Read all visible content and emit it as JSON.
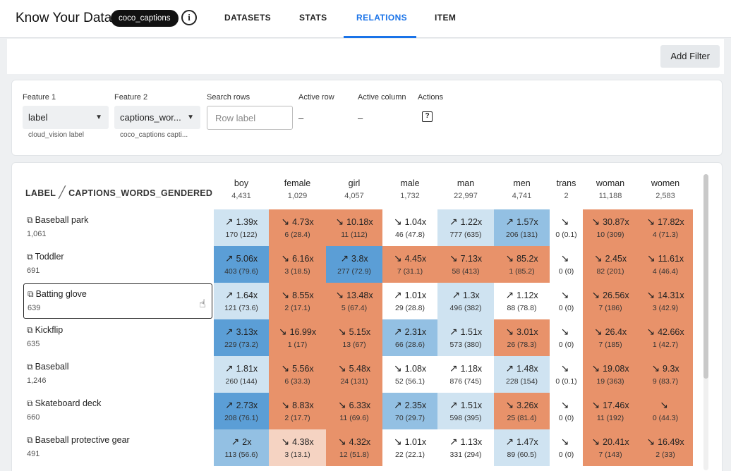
{
  "header": {
    "app_title": "Know Your Data",
    "dataset": "coco_captions",
    "info_icon": "info-icon",
    "tabs": [
      {
        "label": "DATASETS",
        "active": false
      },
      {
        "label": "STATS",
        "active": false
      },
      {
        "label": "RELATIONS",
        "active": true
      },
      {
        "label": "ITEM",
        "active": false
      }
    ],
    "accent_color": "#1a73e8"
  },
  "filterbar": {
    "add_filter_label": "Add Filter"
  },
  "controls": {
    "feature1": {
      "label": "Feature 1",
      "value": "label",
      "sub": "cloud_vision label"
    },
    "feature2": {
      "label": "Feature 2",
      "value": "captions_wor...",
      "sub": "coco_captions capti..."
    },
    "search": {
      "label": "Search rows",
      "placeholder": "Row label"
    },
    "active_row": {
      "label": "Active row",
      "value": "–"
    },
    "active_column": {
      "label": "Active column",
      "value": "–"
    },
    "actions": {
      "label": "Actions",
      "icon": "help-icon"
    }
  },
  "table": {
    "row_feature": "LABEL",
    "col_feature": "CAPTIONS_WORDS_GENDERED",
    "colors": {
      "high": "#5b9ed6",
      "mid": "#93c0e3",
      "low": "#cfe3f1",
      "neutral": "#ffffff",
      "under": "#e8926a",
      "under_light": "#f5d3c2"
    },
    "columns": [
      {
        "name": "boy",
        "count": "4,431"
      },
      {
        "name": "female",
        "count": "1,029"
      },
      {
        "name": "girl",
        "count": "4,057"
      },
      {
        "name": "male",
        "count": "1,732"
      },
      {
        "name": "man",
        "count": "22,997"
      },
      {
        "name": "men",
        "count": "4,741"
      },
      {
        "name": "trans",
        "count": "2"
      },
      {
        "name": "woman",
        "count": "11,188"
      },
      {
        "name": "women",
        "count": "2,583"
      }
    ],
    "rows": [
      {
        "label": "Baseball park",
        "count": "1,061",
        "cells": [
          {
            "dir": "up",
            "ratio": "1.39x",
            "detail": "170 (122)",
            "shade": "low"
          },
          {
            "dir": "down",
            "ratio": "4.73x",
            "detail": "6 (28.4)",
            "shade": "under"
          },
          {
            "dir": "down",
            "ratio": "10.18x",
            "detail": "11 (112)",
            "shade": "under"
          },
          {
            "dir": "down",
            "ratio": "1.04x",
            "detail": "46 (47.8)",
            "shade": "neutral"
          },
          {
            "dir": "up",
            "ratio": "1.22x",
            "detail": "777 (635)",
            "shade": "low"
          },
          {
            "dir": "up",
            "ratio": "1.57x",
            "detail": "206 (131)",
            "shade": "mid"
          },
          {
            "dir": "down",
            "ratio": "",
            "detail": "0 (0.1)",
            "shade": "neutral"
          },
          {
            "dir": "down",
            "ratio": "30.87x",
            "detail": "10 (309)",
            "shade": "under"
          },
          {
            "dir": "down",
            "ratio": "17.82x",
            "detail": "4 (71.3)",
            "shade": "under"
          }
        ]
      },
      {
        "label": "Toddler",
        "count": "691",
        "cells": [
          {
            "dir": "up",
            "ratio": "5.06x",
            "detail": "403 (79.6)",
            "shade": "high"
          },
          {
            "dir": "down",
            "ratio": "6.16x",
            "detail": "3 (18.5)",
            "shade": "under"
          },
          {
            "dir": "up",
            "ratio": "3.8x",
            "detail": "277 (72.9)",
            "shade": "high"
          },
          {
            "dir": "down",
            "ratio": "4.45x",
            "detail": "7 (31.1)",
            "shade": "under"
          },
          {
            "dir": "down",
            "ratio": "7.13x",
            "detail": "58 (413)",
            "shade": "under"
          },
          {
            "dir": "down",
            "ratio": "85.2x",
            "detail": "1 (85.2)",
            "shade": "under"
          },
          {
            "dir": "down",
            "ratio": "",
            "detail": "0 (0)",
            "shade": "neutral"
          },
          {
            "dir": "down",
            "ratio": "2.45x",
            "detail": "82 (201)",
            "shade": "under"
          },
          {
            "dir": "down",
            "ratio": "11.61x",
            "detail": "4 (46.4)",
            "shade": "under"
          }
        ]
      },
      {
        "label": "Batting glove",
        "count": "639",
        "cells": [
          {
            "dir": "up",
            "ratio": "1.64x",
            "detail": "121 (73.6)",
            "shade": "low"
          },
          {
            "dir": "down",
            "ratio": "8.55x",
            "detail": "2 (17.1)",
            "shade": "under"
          },
          {
            "dir": "down",
            "ratio": "13.48x",
            "detail": "5 (67.4)",
            "shade": "under"
          },
          {
            "dir": "up",
            "ratio": "1.01x",
            "detail": "29 (28.8)",
            "shade": "neutral"
          },
          {
            "dir": "up",
            "ratio": "1.3x",
            "detail": "496 (382)",
            "shade": "low"
          },
          {
            "dir": "up",
            "ratio": "1.12x",
            "detail": "88 (78.8)",
            "shade": "neutral"
          },
          {
            "dir": "down",
            "ratio": "",
            "detail": "0 (0)",
            "shade": "neutral"
          },
          {
            "dir": "down",
            "ratio": "26.56x",
            "detail": "7 (186)",
            "shade": "under"
          },
          {
            "dir": "down",
            "ratio": "14.31x",
            "detail": "3 (42.9)",
            "shade": "under"
          }
        ]
      },
      {
        "label": "Kickflip",
        "count": "635",
        "cells": [
          {
            "dir": "up",
            "ratio": "3.13x",
            "detail": "229 (73.2)",
            "shade": "high"
          },
          {
            "dir": "down",
            "ratio": "16.99x",
            "detail": "1 (17)",
            "shade": "under"
          },
          {
            "dir": "down",
            "ratio": "5.15x",
            "detail": "13 (67)",
            "shade": "under"
          },
          {
            "dir": "up",
            "ratio": "2.31x",
            "detail": "66 (28.6)",
            "shade": "mid"
          },
          {
            "dir": "up",
            "ratio": "1.51x",
            "detail": "573 (380)",
            "shade": "low"
          },
          {
            "dir": "down",
            "ratio": "3.01x",
            "detail": "26 (78.3)",
            "shade": "under"
          },
          {
            "dir": "down",
            "ratio": "",
            "detail": "0 (0)",
            "shade": "neutral"
          },
          {
            "dir": "down",
            "ratio": "26.4x",
            "detail": "7 (185)",
            "shade": "under"
          },
          {
            "dir": "down",
            "ratio": "42.66x",
            "detail": "1 (42.7)",
            "shade": "under"
          }
        ]
      },
      {
        "label": "Baseball",
        "count": "1,246",
        "cells": [
          {
            "dir": "up",
            "ratio": "1.81x",
            "detail": "260 (144)",
            "shade": "low"
          },
          {
            "dir": "down",
            "ratio": "5.56x",
            "detail": "6 (33.3)",
            "shade": "under"
          },
          {
            "dir": "down",
            "ratio": "5.48x",
            "detail": "24 (131)",
            "shade": "under"
          },
          {
            "dir": "down",
            "ratio": "1.08x",
            "detail": "52 (56.1)",
            "shade": "neutral"
          },
          {
            "dir": "up",
            "ratio": "1.18x",
            "detail": "876 (745)",
            "shade": "neutral"
          },
          {
            "dir": "up",
            "ratio": "1.48x",
            "detail": "228 (154)",
            "shade": "low"
          },
          {
            "dir": "down",
            "ratio": "",
            "detail": "0 (0.1)",
            "shade": "neutral"
          },
          {
            "dir": "down",
            "ratio": "19.08x",
            "detail": "19 (363)",
            "shade": "under"
          },
          {
            "dir": "down",
            "ratio": "9.3x",
            "detail": "9 (83.7)",
            "shade": "under"
          }
        ]
      },
      {
        "label": "Skateboard deck",
        "count": "660",
        "cells": [
          {
            "dir": "up",
            "ratio": "2.73x",
            "detail": "208 (76.1)",
            "shade": "high"
          },
          {
            "dir": "down",
            "ratio": "8.83x",
            "detail": "2 (17.7)",
            "shade": "under"
          },
          {
            "dir": "down",
            "ratio": "6.33x",
            "detail": "11 (69.6)",
            "shade": "under"
          },
          {
            "dir": "up",
            "ratio": "2.35x",
            "detail": "70 (29.7)",
            "shade": "mid"
          },
          {
            "dir": "up",
            "ratio": "1.51x",
            "detail": "598 (395)",
            "shade": "low"
          },
          {
            "dir": "down",
            "ratio": "3.26x",
            "detail": "25 (81.4)",
            "shade": "under"
          },
          {
            "dir": "down",
            "ratio": "",
            "detail": "0 (0)",
            "shade": "neutral"
          },
          {
            "dir": "down",
            "ratio": "17.46x",
            "detail": "11 (192)",
            "shade": "under"
          },
          {
            "dir": "down",
            "ratio": "",
            "detail": "0 (44.3)",
            "shade": "under"
          }
        ]
      },
      {
        "label": "Baseball protective gear",
        "count": "491",
        "cells": [
          {
            "dir": "up",
            "ratio": "2x",
            "detail": "113 (56.6)",
            "shade": "mid"
          },
          {
            "dir": "down",
            "ratio": "4.38x",
            "detail": "3 (13.1)",
            "shade": "under_light"
          },
          {
            "dir": "down",
            "ratio": "4.32x",
            "detail": "12 (51.8)",
            "shade": "under"
          },
          {
            "dir": "down",
            "ratio": "1.01x",
            "detail": "22 (22.1)",
            "shade": "neutral"
          },
          {
            "dir": "up",
            "ratio": "1.13x",
            "detail": "331 (294)",
            "shade": "neutral"
          },
          {
            "dir": "up",
            "ratio": "1.47x",
            "detail": "89 (60.5)",
            "shade": "low"
          },
          {
            "dir": "down",
            "ratio": "",
            "detail": "0 (0)",
            "shade": "neutral"
          },
          {
            "dir": "down",
            "ratio": "20.41x",
            "detail": "7 (143)",
            "shade": "under"
          },
          {
            "dir": "down",
            "ratio": "16.49x",
            "detail": "2 (33)",
            "shade": "under"
          }
        ]
      }
    ]
  }
}
